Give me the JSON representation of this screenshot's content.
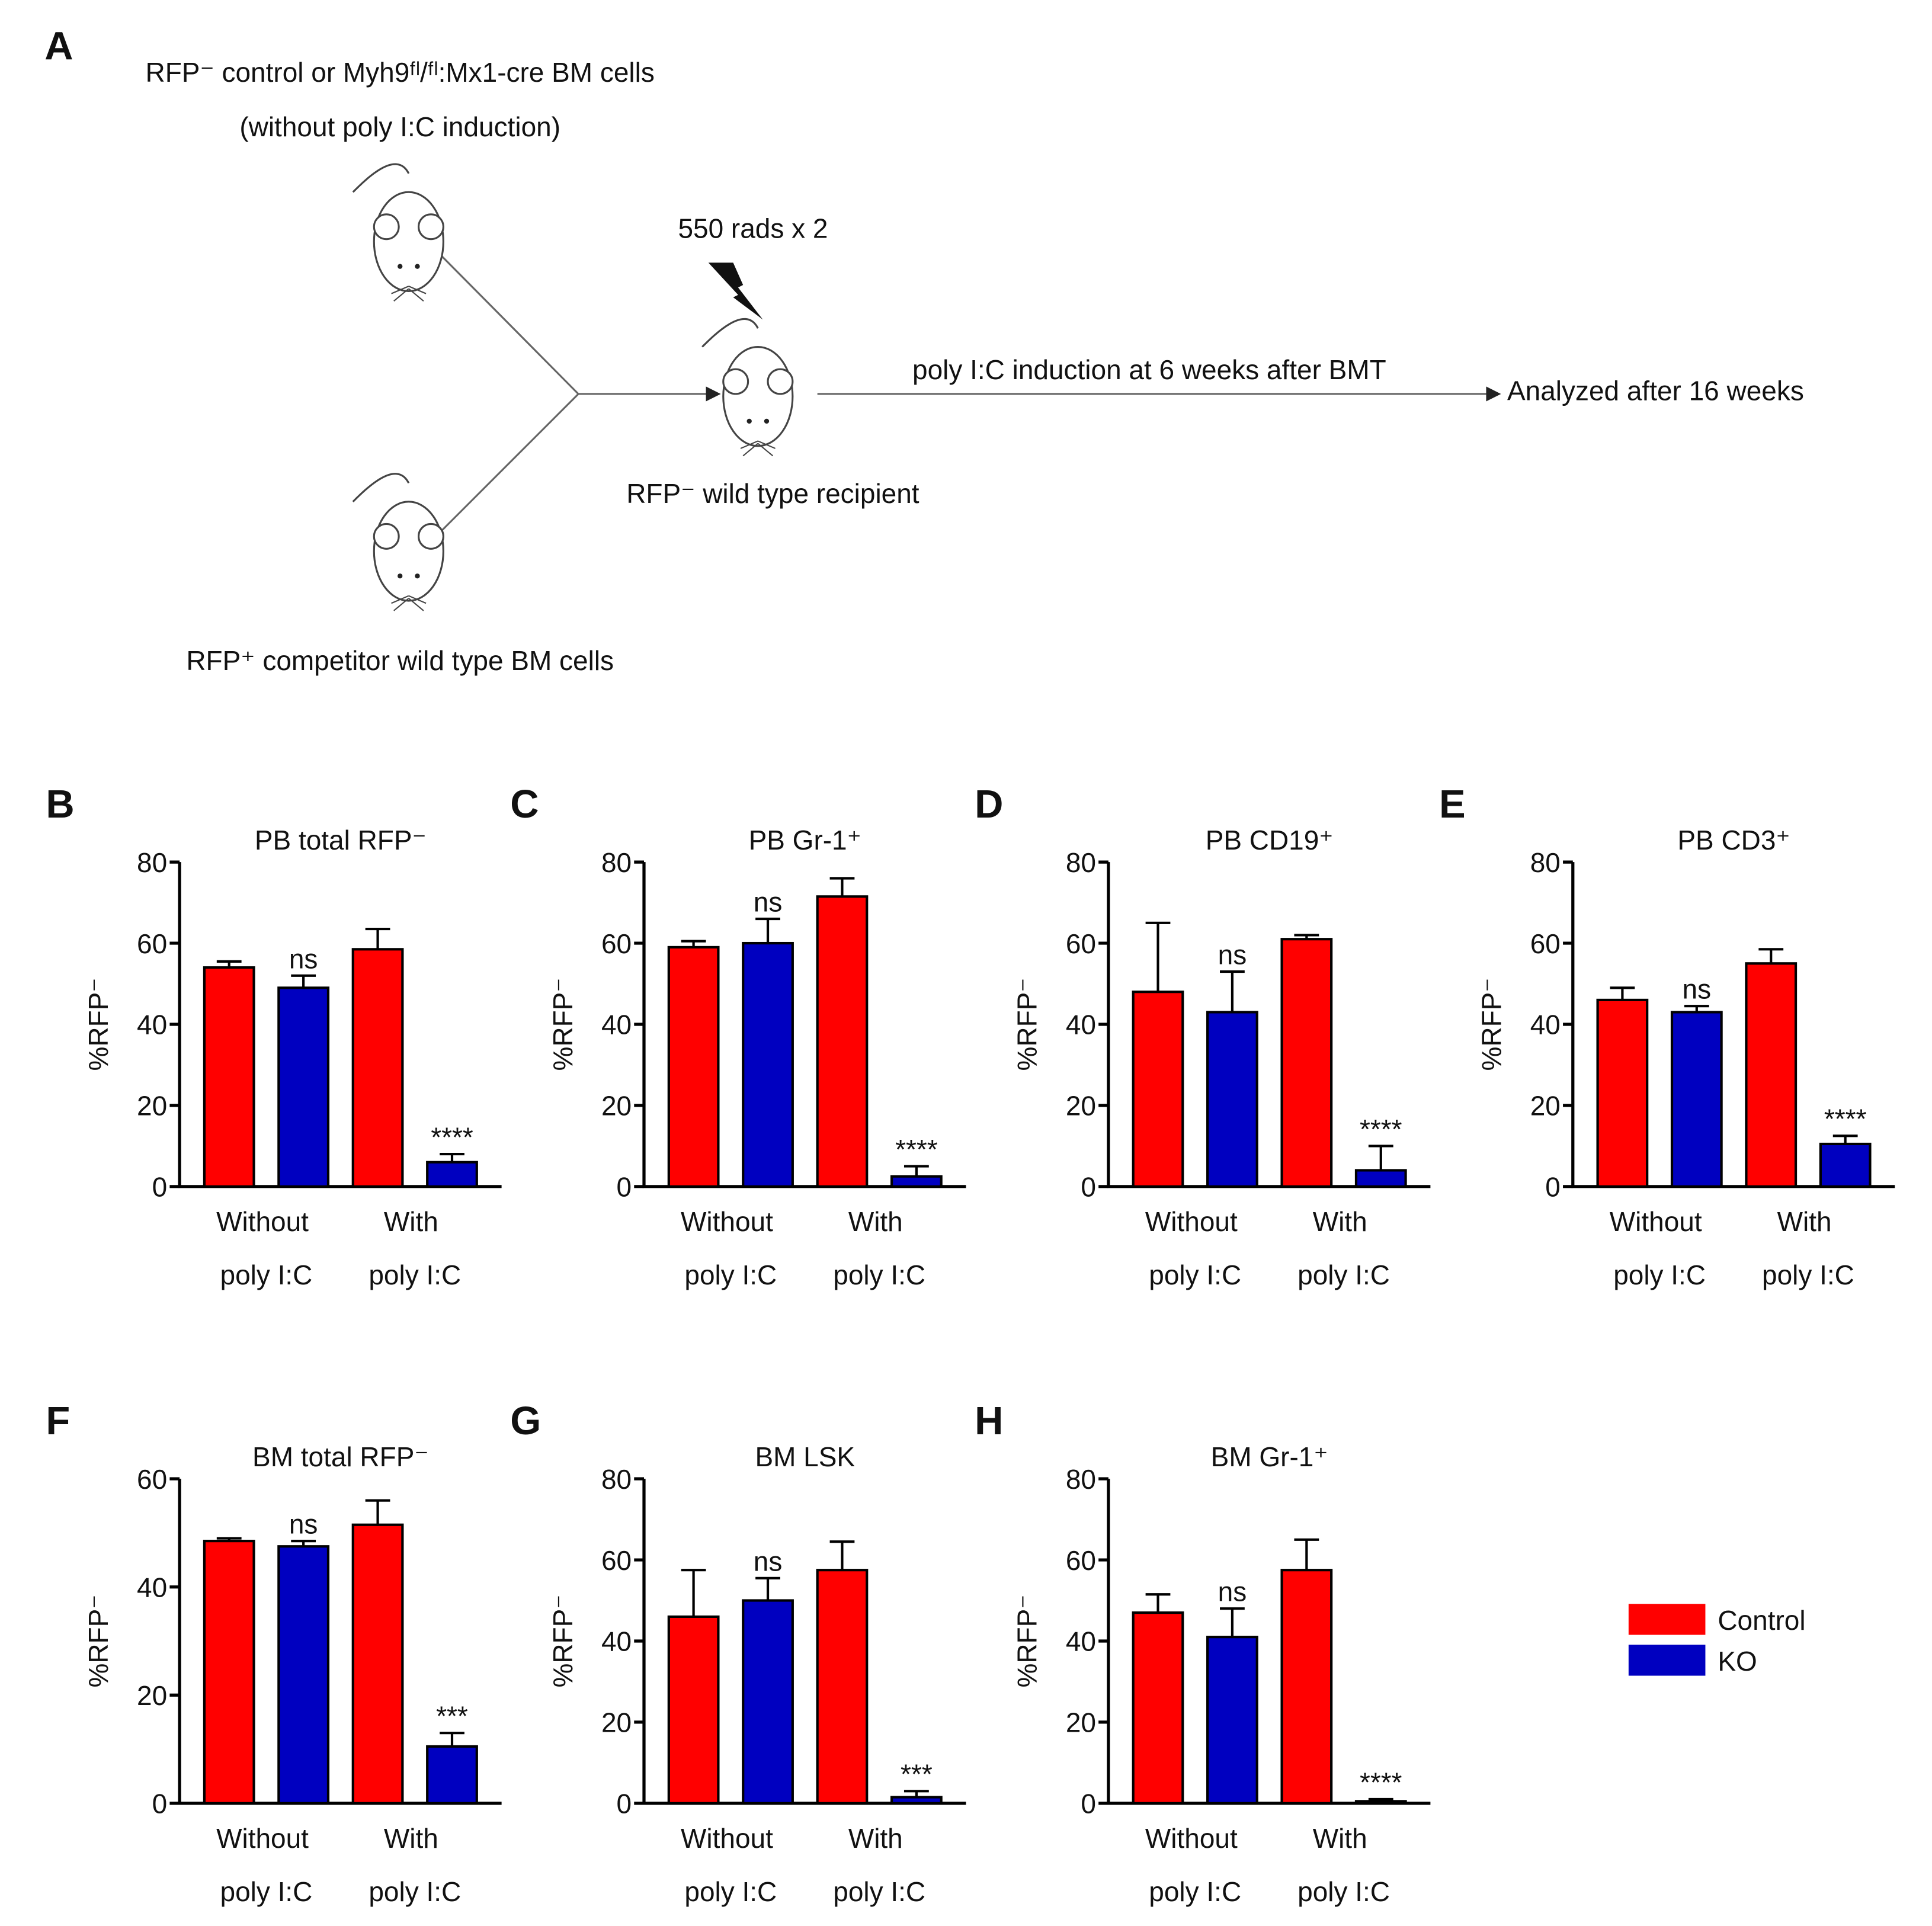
{
  "diagram": {
    "panel_label": "A",
    "donor_text": "RFP⁻ control or Myh9ᶠˡ/ᶠˡ:Mx1-cre BM cells",
    "donor_note": "(without poly I:C induction)",
    "competitor_text": "RFP⁺ competitor wild type BM cells",
    "irradiation": "550 rads x 2",
    "recipient": "RFP⁻ wild type recipient",
    "induction": "poly I:C induction at 6 weeks after BMT",
    "analysis": "Analyzed after 16 weeks"
  },
  "chart_data": [
    {
      "type": "bar",
      "panel_label": "B",
      "title": "PB total RFP⁻",
      "y_label": "%RFP⁻",
      "categories": [
        "Without poly I:C",
        "With poly I:C"
      ],
      "series": [
        {
          "name": "Control",
          "color": "#ff0000",
          "values": [
            54,
            58.5
          ],
          "errors": [
            1.5,
            5
          ]
        },
        {
          "name": "KO",
          "color": "#0000c0",
          "values": [
            49,
            6
          ],
          "errors": [
            3,
            2
          ]
        }
      ],
      "annotations": [
        "ns",
        "****"
      ],
      "ylim": [
        0,
        80
      ],
      "yticks": [
        0,
        20,
        40,
        60,
        80
      ]
    },
    {
      "type": "bar",
      "panel_label": "C",
      "title": "PB Gr-1⁺",
      "y_label": "%RFP⁻",
      "categories": [
        "Without poly I:C",
        "With poly I:C"
      ],
      "series": [
        {
          "name": "Control",
          "color": "#ff0000",
          "values": [
            59,
            71.5
          ],
          "errors": [
            1.5,
            4.5
          ]
        },
        {
          "name": "KO",
          "color": "#0000c0",
          "values": [
            60,
            2.5
          ],
          "errors": [
            6,
            2.5
          ]
        }
      ],
      "annotations": [
        "ns",
        "****"
      ],
      "ylim": [
        0,
        80
      ],
      "yticks": [
        0,
        20,
        40,
        60,
        80
      ]
    },
    {
      "type": "bar",
      "panel_label": "D",
      "title": "PB CD19⁺",
      "y_label": "%RFP⁻",
      "categories": [
        "Without poly I:C",
        "With poly I:C"
      ],
      "series": [
        {
          "name": "Control",
          "color": "#ff0000",
          "values": [
            48,
            61
          ],
          "errors": [
            17,
            1
          ]
        },
        {
          "name": "KO",
          "color": "#0000c0",
          "values": [
            43,
            4
          ],
          "errors": [
            10,
            6
          ]
        }
      ],
      "annotations": [
        "ns",
        "****"
      ],
      "ylim": [
        0,
        80
      ],
      "yticks": [
        0,
        20,
        40,
        60,
        80
      ]
    },
    {
      "type": "bar",
      "panel_label": "E",
      "title": "PB CD3⁺",
      "y_label": "%RFP⁻",
      "categories": [
        "Without poly I:C",
        "With poly I:C"
      ],
      "series": [
        {
          "name": "Control",
          "color": "#ff0000",
          "values": [
            46,
            55
          ],
          "errors": [
            3,
            3.5
          ]
        },
        {
          "name": "KO",
          "color": "#0000c0",
          "values": [
            43,
            10.5
          ],
          "errors": [
            1.5,
            2
          ]
        }
      ],
      "annotations": [
        "ns",
        "****"
      ],
      "ylim": [
        0,
        80
      ],
      "yticks": [
        0,
        20,
        40,
        60,
        80
      ]
    },
    {
      "type": "bar",
      "panel_label": "F",
      "title": "BM total RFP⁻",
      "y_label": "%RFP⁻",
      "categories": [
        "Without poly I:C",
        "With poly I:C"
      ],
      "series": [
        {
          "name": "Control",
          "color": "#ff0000",
          "values": [
            48.5,
            51.5
          ],
          "errors": [
            0.5,
            4.5
          ]
        },
        {
          "name": "KO",
          "color": "#0000c0",
          "values": [
            47.5,
            10.5
          ],
          "errors": [
            1,
            2.5
          ]
        }
      ],
      "annotations": [
        "ns",
        "***"
      ],
      "ylim": [
        0,
        60
      ],
      "yticks": [
        0,
        20,
        40,
        60
      ]
    },
    {
      "type": "bar",
      "panel_label": "G",
      "title": "BM LSK",
      "y_label": "%RFP⁻",
      "categories": [
        "Without poly I:C",
        "With poly I:C"
      ],
      "series": [
        {
          "name": "Control",
          "color": "#ff0000",
          "values": [
            46,
            57.5
          ],
          "errors": [
            11.5,
            7
          ]
        },
        {
          "name": "KO",
          "color": "#0000c0",
          "values": [
            50,
            1.5
          ],
          "errors": [
            5.5,
            1.5
          ]
        }
      ],
      "annotations": [
        "ns",
        "***"
      ],
      "ylim": [
        0,
        80
      ],
      "yticks": [
        0,
        20,
        40,
        60,
        80
      ]
    },
    {
      "type": "bar",
      "panel_label": "H",
      "title": "BM Gr-1⁺",
      "y_label": "%RFP⁻",
      "categories": [
        "Without poly I:C",
        "With poly I:C"
      ],
      "series": [
        {
          "name": "Control",
          "color": "#ff0000",
          "values": [
            47,
            57.5
          ],
          "errors": [
            4.5,
            7.5
          ]
        },
        {
          "name": "KO",
          "color": "#0000c0",
          "values": [
            41,
            0.5
          ],
          "errors": [
            7,
            0.5
          ]
        }
      ],
      "annotations": [
        "ns",
        "****"
      ],
      "ylim": [
        0,
        80
      ],
      "yticks": [
        0,
        20,
        40,
        60,
        80
      ]
    }
  ]
}
